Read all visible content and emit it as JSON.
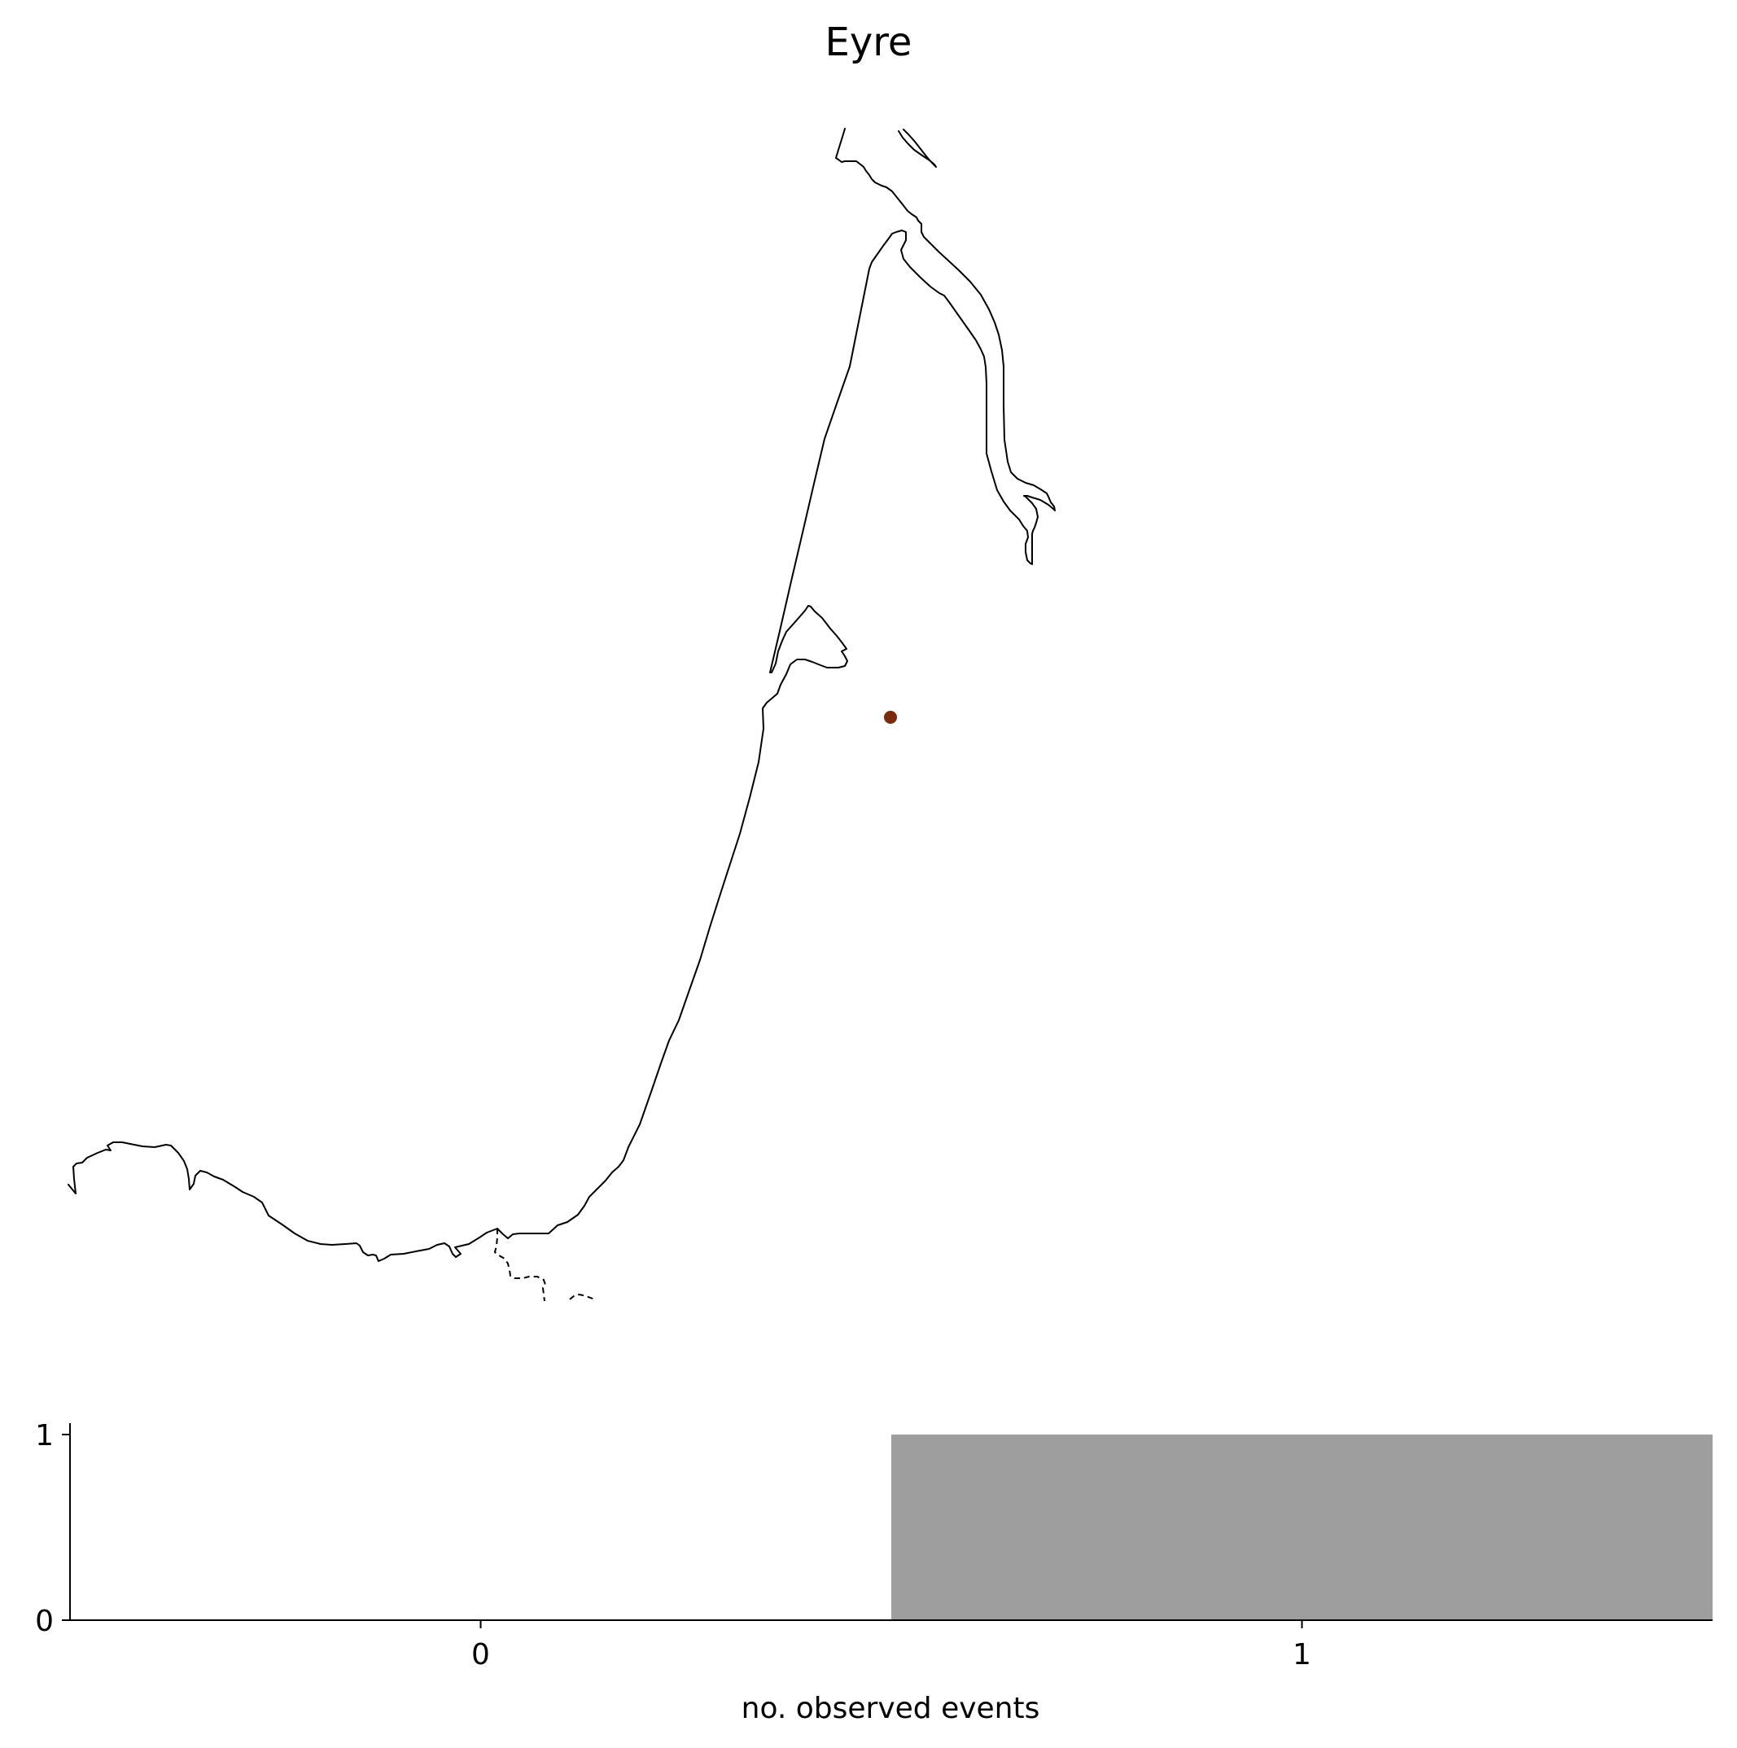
{
  "title": "Eyre",
  "map": {
    "event_marker_color": "#7b2a0e",
    "coastline_color": "#000000",
    "border_style": "dashed"
  },
  "chart_data": {
    "type": "bar",
    "categories": [
      "0",
      "1"
    ],
    "values": [
      0,
      1
    ],
    "bar_color": "#9e9e9e",
    "xlabel": "no. observed events",
    "ylabel": "",
    "yticks": [
      "0",
      "1"
    ],
    "ylim": [
      0,
      1
    ],
    "grid": false
  }
}
